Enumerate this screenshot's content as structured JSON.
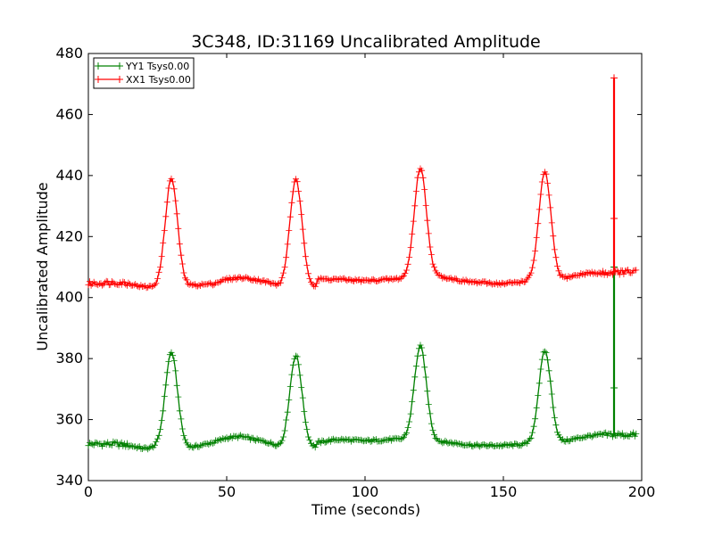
{
  "chart_data": {
    "type": "line",
    "title": "3C348, ID:31169 Uncalibrated Amplitude",
    "xlabel": "Time (seconds)",
    "ylabel": "Uncalibrated Amplitude",
    "xlim": [
      0,
      200
    ],
    "ylim": [
      340,
      480
    ],
    "xticks": [
      "0",
      "50",
      "100",
      "150",
      "200"
    ],
    "yticks": [
      "340",
      "360",
      "380",
      "400",
      "420",
      "440",
      "460",
      "480"
    ],
    "grid": false,
    "legend_position": "top-left",
    "marker": "plus",
    "series": [
      {
        "name": "YY1 Tsys0.00",
        "color": "#008000",
        "baseline_points": [
          [
            0,
            352
          ],
          [
            10,
            352
          ],
          [
            15,
            351.5
          ],
          [
            20,
            350.5
          ],
          [
            25,
            351
          ],
          [
            38,
            351
          ],
          [
            45,
            352.5
          ],
          [
            50,
            354
          ],
          [
            55,
            354.5
          ],
          [
            60,
            353.5
          ],
          [
            65,
            352.5
          ],
          [
            70,
            351
          ],
          [
            82,
            351
          ],
          [
            83,
            352.5
          ],
          [
            90,
            353.5
          ],
          [
            100,
            353
          ],
          [
            110,
            353.5
          ],
          [
            117,
            353.5
          ],
          [
            125,
            353
          ],
          [
            130,
            352.5
          ],
          [
            135,
            352
          ],
          [
            140,
            351.5
          ],
          [
            150,
            351.5
          ],
          [
            160,
            352
          ],
          [
            170,
            352.5
          ],
          [
            175,
            353.5
          ],
          [
            180,
            354.5
          ],
          [
            185,
            355
          ],
          [
            198,
            355
          ]
        ],
        "peaks": [
          {
            "x": 30,
            "y": 382
          },
          {
            "x": 75,
            "y": 381
          },
          {
            "x": 120,
            "y": 384
          },
          {
            "x": 165,
            "y": 382.5
          }
        ],
        "spike": {
          "x": 190,
          "ymin": 355,
          "ymax": 410
        }
      },
      {
        "name": "XX1 Tsys0.00",
        "color": "#ff0000",
        "baseline_points": [
          [
            0,
            404.5
          ],
          [
            10,
            405
          ],
          [
            15,
            404.5
          ],
          [
            20,
            403.5
          ],
          [
            25,
            403.5
          ],
          [
            38,
            404
          ],
          [
            45,
            404.5
          ],
          [
            50,
            406
          ],
          [
            55,
            406.5
          ],
          [
            60,
            406
          ],
          [
            65,
            405
          ],
          [
            70,
            403.5
          ],
          [
            80,
            404
          ],
          [
            82,
            403.5
          ],
          [
            83,
            406
          ],
          [
            90,
            406
          ],
          [
            100,
            405.5
          ],
          [
            110,
            406
          ],
          [
            117,
            406.5
          ],
          [
            125,
            407
          ],
          [
            130,
            406.5
          ],
          [
            135,
            405.5
          ],
          [
            140,
            405
          ],
          [
            150,
            404.5
          ],
          [
            160,
            405.5
          ],
          [
            170,
            406
          ],
          [
            175,
            407
          ],
          [
            180,
            408
          ],
          [
            185,
            408
          ],
          [
            198,
            408.5
          ]
        ],
        "peaks": [
          {
            "x": 30,
            "y": 439
          },
          {
            "x": 75,
            "y": 438.5
          },
          {
            "x": 120,
            "y": 442.5
          },
          {
            "x": 165,
            "y": 441
          }
        ],
        "spike": {
          "x": 190,
          "ymin": 408,
          "ymax": 472
        }
      }
    ]
  }
}
